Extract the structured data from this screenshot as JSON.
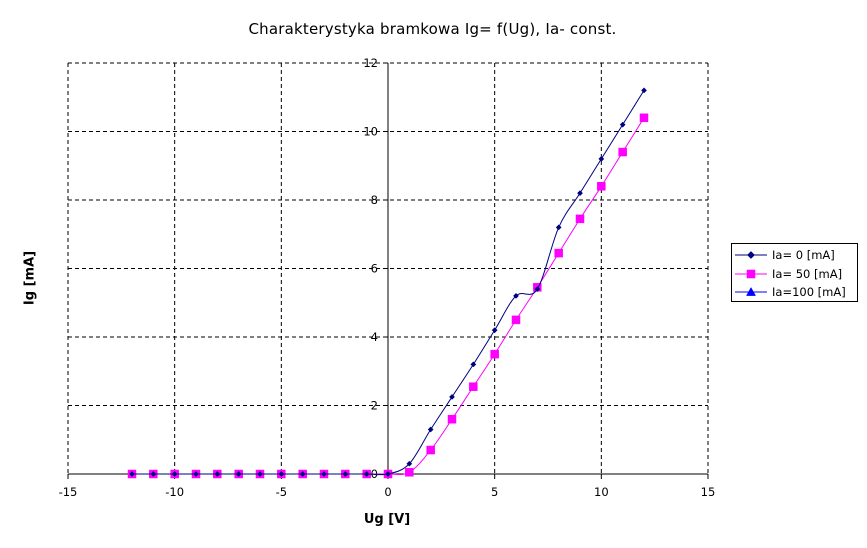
{
  "chart_data": {
    "type": "line",
    "title": "Charakterystyka bramkowa Ig= f(Ug), Ia- const.",
    "xlabel": "Ug [V]",
    "ylabel": "Ig [mA]",
    "xlim": [
      -15,
      15
    ],
    "ylim": [
      0,
      12
    ],
    "x_ticks": [
      "-15",
      "-10",
      "-5",
      "0",
      "5",
      "10",
      "15"
    ],
    "y_ticks": [
      "0",
      "2",
      "4",
      "6",
      "8",
      "10",
      "12"
    ],
    "grid": true,
    "legend_position": "right",
    "series": [
      {
        "name": "Ia= 0 [mA]",
        "color": "#000080",
        "marker": "diamond",
        "x": [
          -12,
          -11,
          -10,
          -9,
          -8,
          -7,
          -6,
          -5,
          -4,
          -3,
          -2,
          -1,
          0,
          1,
          2,
          3,
          4,
          5,
          6,
          7,
          8,
          9,
          10,
          11,
          12
        ],
        "y": [
          0,
          0,
          0,
          0,
          0,
          0,
          0,
          0,
          0,
          0,
          0,
          0,
          0,
          0.3,
          1.3,
          2.25,
          3.2,
          4.2,
          5.2,
          5.4,
          7.2,
          8.2,
          9.2,
          10.2,
          11.2
        ]
      },
      {
        "name": "Ia= 50 [mA]",
        "color": "#ff00ff",
        "marker": "square",
        "x": [
          -12,
          -11,
          -10,
          -9,
          -8,
          -7,
          -6,
          -5,
          -4,
          -3,
          -2,
          -1,
          0,
          1,
          2,
          3,
          4,
          5,
          6,
          7,
          8,
          9,
          10,
          11,
          12
        ],
        "y": [
          0,
          0,
          0,
          0,
          0,
          0,
          0,
          0,
          0,
          0,
          0,
          0,
          0,
          0.05,
          0.7,
          1.6,
          2.55,
          3.5,
          4.5,
          5.45,
          6.45,
          7.45,
          8.4,
          9.4,
          10.4
        ]
      },
      {
        "name": "Ia=100 [mA]",
        "color": "#0000ff",
        "marker": "triangle",
        "x": [],
        "y": []
      }
    ]
  }
}
